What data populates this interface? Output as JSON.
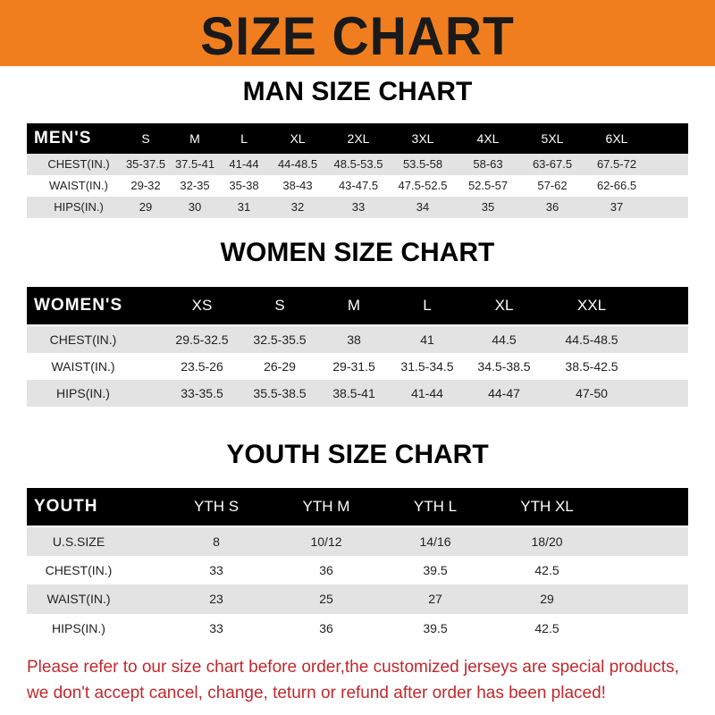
{
  "banner": {
    "title": "SIZE CHART",
    "color": "#f07e1e"
  },
  "men": {
    "title": "MAN SIZE CHART",
    "header": [
      "MEN'S",
      "S",
      "M",
      "L",
      "XL",
      "2XL",
      "3XL",
      "4XL",
      "5XL",
      "6XL"
    ],
    "rows": [
      [
        "CHEST(IN.)",
        "35-37.5",
        "37.5-41",
        "41-44",
        "44-48.5",
        "48.5-53.5",
        "53.5-58",
        "58-63",
        "63-67.5",
        "67.5-72"
      ],
      [
        "WAIST(IN.)",
        "29-32",
        "32-35",
        "35-38",
        "38-43",
        "43-47.5",
        "47.5-52.5",
        "52.5-57",
        "57-62",
        "62-66.5"
      ],
      [
        "HIPS(IN.)",
        "29",
        "30",
        "31",
        "32",
        "33",
        "34",
        "35",
        "36",
        "37"
      ]
    ]
  },
  "women": {
    "title": "WOMEN SIZE CHART",
    "header": [
      "WOMEN'S",
      "XS",
      "S",
      "M",
      "L",
      "XL",
      "XXL"
    ],
    "rows": [
      [
        "CHEST(IN.)",
        "29.5-32.5",
        "32.5-35.5",
        "38",
        "41",
        "44.5",
        "44.5-48.5"
      ],
      [
        "WAIST(IN.)",
        "23.5-26",
        "26-29",
        "29-31.5",
        "31.5-34.5",
        "34.5-38.5",
        "38.5-42.5"
      ],
      [
        "HIPS(IN.)",
        "33-35.5",
        "35.5-38.5",
        "38.5-41",
        "41-44",
        "44-47",
        "47-50"
      ]
    ]
  },
  "youth": {
    "title": "YOUTH SIZE CHART",
    "header": [
      "YOUTH",
      "YTH S",
      "YTH M",
      "YTH L",
      "YTH XL"
    ],
    "rows": [
      [
        "U.S.SIZE",
        "8",
        "10/12",
        "14/16",
        "18/20"
      ],
      [
        "CHEST(IN.)",
        "33",
        "36",
        "39.5",
        "42.5"
      ],
      [
        "WAIST(IN.)",
        "23",
        "25",
        "27",
        "29"
      ],
      [
        "HIPS(IN.)",
        "33",
        "36",
        "39.5",
        "42.5"
      ]
    ]
  },
  "footer": {
    "line1": "Please refer to our size chart before order,the customized jerseys are special products,",
    "line2": "we don't accept cancel, change, teturn or refund after order has been placed!",
    "color": "#c0282d"
  }
}
